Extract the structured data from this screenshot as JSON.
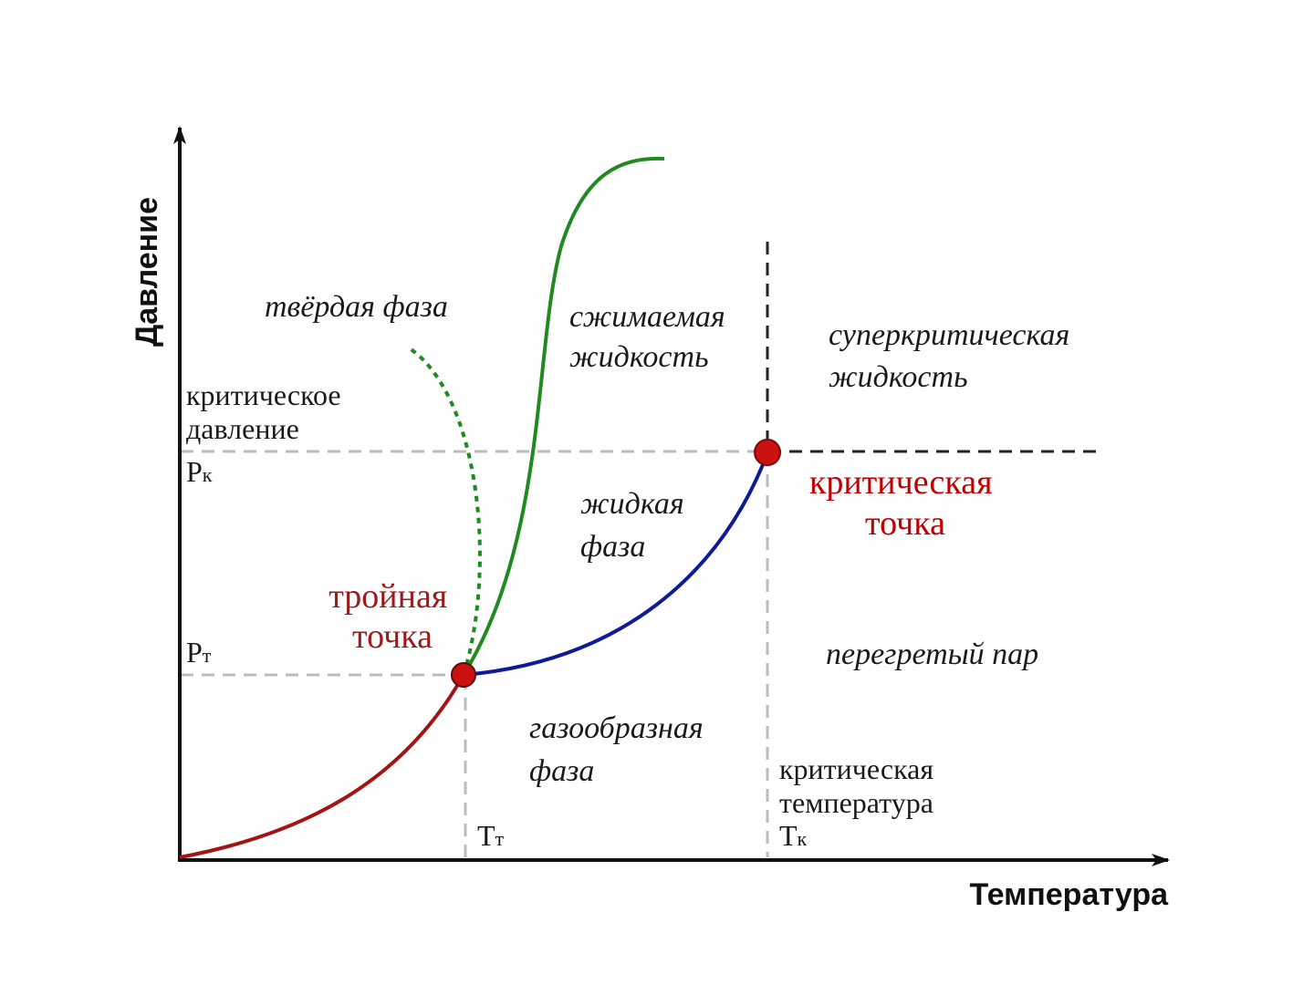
{
  "axes": {
    "x_title": "Температура",
    "y_title": "Давление"
  },
  "labels": {
    "critical_pressure_line1": "критическое",
    "critical_pressure_line2": "давление",
    "pk_main": "P",
    "pk_sub": "к",
    "pt_main": "P",
    "pt_sub": "т",
    "tt_main": "T",
    "tt_sub": "т",
    "tk_main": "T",
    "tk_sub": "к",
    "critical_temperature_line1": "критическая",
    "critical_temperature_line2": "температура"
  },
  "regions": {
    "solid": "твёрдая фаза",
    "compressible_liquid_line1": "сжимаемая",
    "compressible_liquid_line2": "жидкость",
    "supercritical_line1": "суперкритическая",
    "supercritical_line2": "жидкость",
    "liquid_line1": "жидкая",
    "liquid_line2": "фаза",
    "superheated_vapor": "перегретый пар",
    "gas_line1": "газообразная",
    "gas_line2": "фаза"
  },
  "points": {
    "triple_line1": "тройная",
    "triple_line2": "точка",
    "critical_line1": "критическая",
    "critical_line2": "точка"
  },
  "colors": {
    "sublimation_curve": "#a31515",
    "melting_curve": "#1f8a1f",
    "vaporization_curve": "#0f1a99",
    "point_fill": "#cc1111",
    "point_label": "#c00000",
    "triple_label": "#9b1b1b",
    "guide_line": "#bbbbbb",
    "critical_boundary": "#222222",
    "axis": "#111111"
  }
}
